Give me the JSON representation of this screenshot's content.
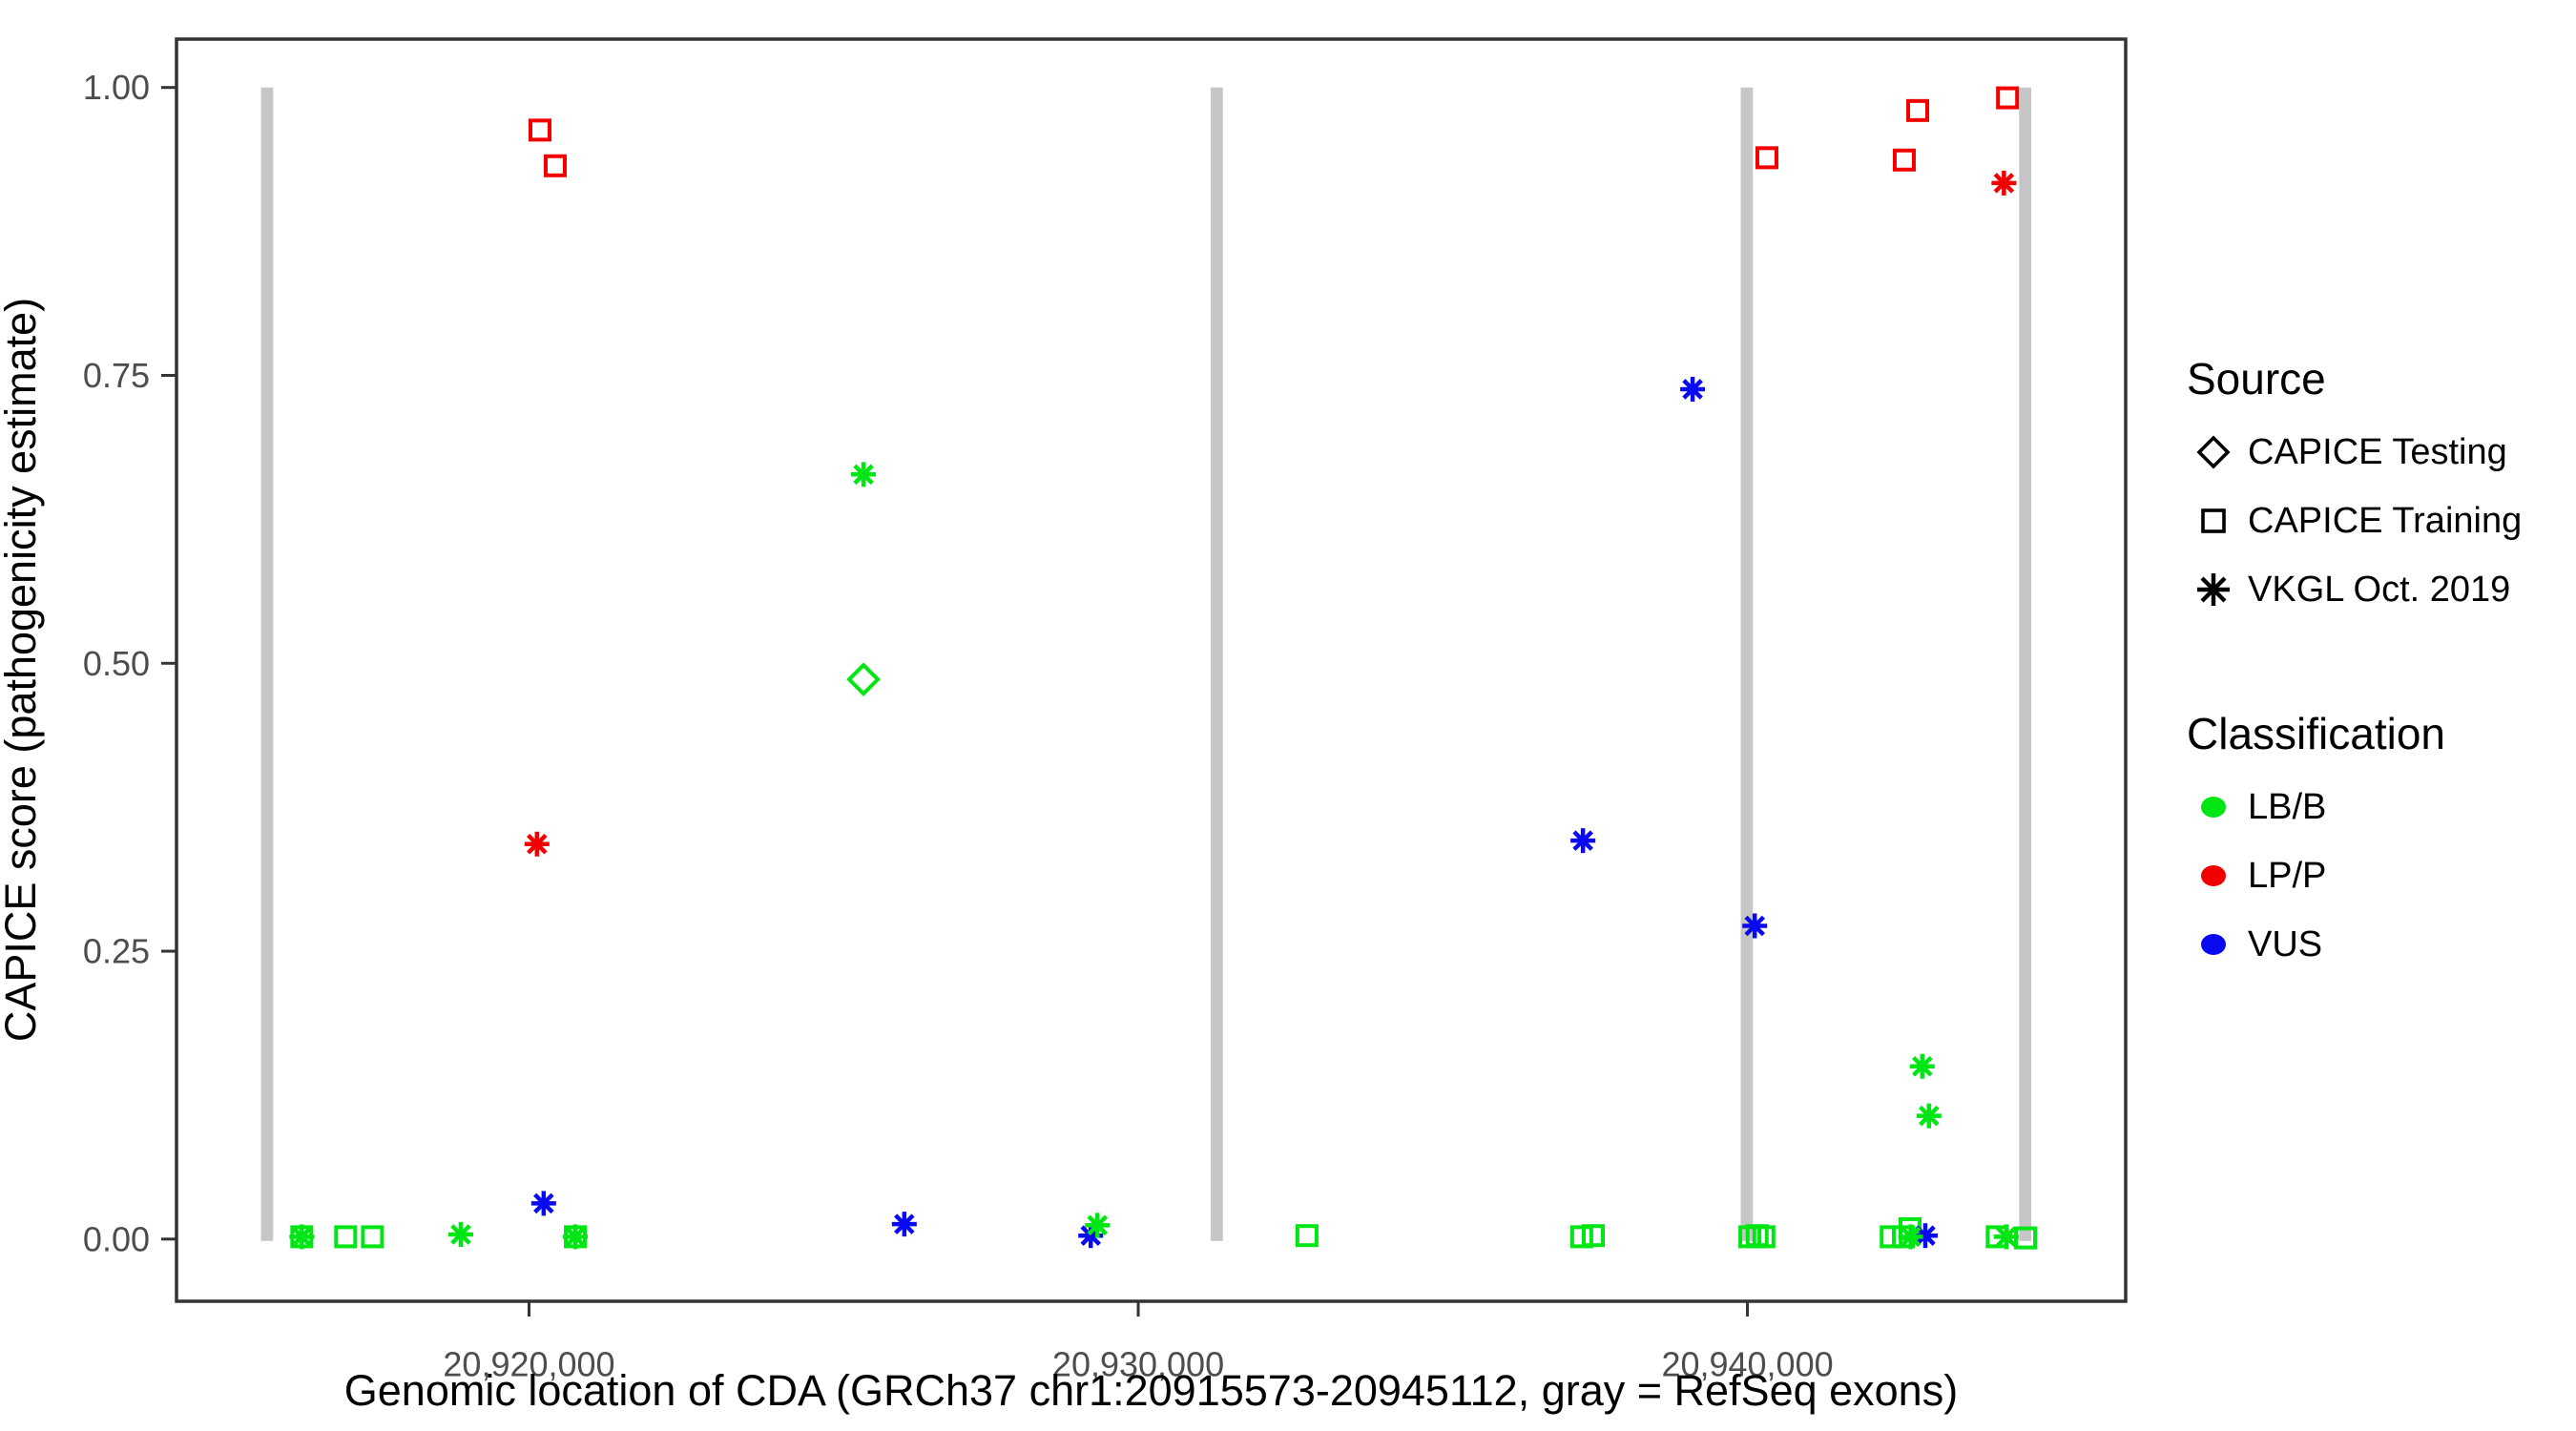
{
  "chart_data": {
    "type": "scatter",
    "title": "",
    "xlabel": "Genomic location of CDA (GRCh37 chr1:20915573-20945112, gray = RefSeq exons)",
    "ylabel": "CAPICE score (pathogenicity estimate)",
    "xlim": [
      20914213,
      20946209
    ],
    "ylim": [
      -0.054,
      1.042
    ],
    "grid": false,
    "x_ticks": [
      {
        "value": 20920000,
        "label": "20,920,000"
      },
      {
        "value": 20930000,
        "label": "20,930,000"
      },
      {
        "value": 20940000,
        "label": "20,940,000"
      }
    ],
    "y_ticks": [
      {
        "value": 1.0,
        "label": "1.00"
      },
      {
        "value": 0.75,
        "label": "0.75"
      },
      {
        "value": 0.5,
        "label": "0.50"
      },
      {
        "value": 0.25,
        "label": "0.25"
      },
      {
        "value": 0.0,
        "label": "0.00"
      }
    ],
    "colors": {
      "LB/B": "#00e614",
      "LP/P": "#f20000",
      "VUS": "#0a0af0",
      "exon": "#c6c6c6",
      "border": "#333333",
      "tick_text": "#4d4d4d"
    },
    "exons_note": "gray = RefSeq exons",
    "exons": [
      {
        "center": 20915700,
        "width_bp": 200
      },
      {
        "center": 20931290,
        "width_bp": 200
      },
      {
        "center": 20939990,
        "width_bp": 200
      },
      {
        "center": 20944560,
        "width_bp": 200
      }
    ],
    "points": [
      {
        "x": 20920180,
        "y": 0.963,
        "source": "training",
        "class": "LP/P"
      },
      {
        "x": 20920430,
        "y": 0.932,
        "source": "training",
        "class": "LP/P"
      },
      {
        "x": 20940320,
        "y": 0.939,
        "source": "training",
        "class": "LP/P"
      },
      {
        "x": 20942575,
        "y": 0.937,
        "source": "training",
        "class": "LP/P"
      },
      {
        "x": 20942795,
        "y": 0.98,
        "source": "training",
        "class": "LP/P"
      },
      {
        "x": 20944270,
        "y": 0.991,
        "source": "training",
        "class": "LP/P"
      },
      {
        "x": 20920130,
        "y": 0.343,
        "source": "vkgl",
        "class": "LP/P"
      },
      {
        "x": 20944210,
        "y": 0.917,
        "source": "vkgl",
        "class": "LP/P"
      },
      {
        "x": 20920240,
        "y": 0.031,
        "source": "vkgl",
        "class": "VUS"
      },
      {
        "x": 20926160,
        "y": 0.013,
        "source": "vkgl",
        "class": "VUS"
      },
      {
        "x": 20929220,
        "y": 0.003,
        "source": "vkgl",
        "class": "VUS"
      },
      {
        "x": 20937300,
        "y": 0.346,
        "source": "vkgl",
        "class": "VUS"
      },
      {
        "x": 20939100,
        "y": 0.738,
        "source": "vkgl",
        "class": "VUS"
      },
      {
        "x": 20940120,
        "y": 0.272,
        "source": "vkgl",
        "class": "VUS"
      },
      {
        "x": 20942920,
        "y": 0.003,
        "source": "vkgl",
        "class": "VUS"
      },
      {
        "x": 20925490,
        "y": 0.664,
        "source": "vkgl",
        "class": "LB/B"
      },
      {
        "x": 20925490,
        "y": 0.486,
        "source": "testing",
        "class": "LB/B"
      },
      {
        "x": 20929330,
        "y": 0.012,
        "source": "vkgl",
        "class": "LB/B"
      },
      {
        "x": 20942870,
        "y": 0.15,
        "source": "vkgl",
        "class": "LB/B"
      },
      {
        "x": 20942980,
        "y": 0.107,
        "source": "vkgl",
        "class": "LB/B"
      },
      {
        "x": 20916270,
        "y": 0.002,
        "source": "vkgl",
        "class": "LB/B"
      },
      {
        "x": 20918880,
        "y": 0.004,
        "source": "vkgl",
        "class": "LB/B"
      },
      {
        "x": 20920760,
        "y": 0.002,
        "source": "vkgl",
        "class": "LB/B"
      },
      {
        "x": 20942680,
        "y": 0.002,
        "source": "vkgl",
        "class": "LB/B"
      },
      {
        "x": 20944250,
        "y": 0.002,
        "source": "vkgl",
        "class": "LB/B"
      },
      {
        "x": 20916270,
        "y": 0.002,
        "source": "training",
        "class": "LB/B"
      },
      {
        "x": 20916990,
        "y": 0.002,
        "source": "training",
        "class": "LB/B"
      },
      {
        "x": 20917430,
        "y": 0.002,
        "source": "training",
        "class": "LB/B"
      },
      {
        "x": 20920760,
        "y": 0.002,
        "source": "training",
        "class": "LB/B"
      },
      {
        "x": 20932770,
        "y": 0.003,
        "source": "training",
        "class": "LB/B"
      },
      {
        "x": 20937280,
        "y": 0.002,
        "source": "training",
        "class": "LB/B"
      },
      {
        "x": 20937470,
        "y": 0.003,
        "source": "training",
        "class": "LB/B"
      },
      {
        "x": 20940040,
        "y": 0.002,
        "source": "training",
        "class": "LB/B"
      },
      {
        "x": 20940160,
        "y": 0.003,
        "source": "training",
        "class": "LB/B"
      },
      {
        "x": 20940270,
        "y": 0.002,
        "source": "training",
        "class": "LB/B"
      },
      {
        "x": 20942360,
        "y": 0.002,
        "source": "training",
        "class": "LB/B"
      },
      {
        "x": 20942560,
        "y": 0.002,
        "source": "training",
        "class": "LB/B"
      },
      {
        "x": 20942670,
        "y": 0.009,
        "source": "training",
        "class": "LB/B"
      },
      {
        "x": 20944100,
        "y": 0.002,
        "source": "training",
        "class": "LB/B"
      },
      {
        "x": 20944565,
        "y": 0.001,
        "source": "training",
        "class": "LB/B"
      }
    ],
    "legend_position": "right"
  },
  "legend": {
    "source": {
      "title": "Source",
      "items": [
        {
          "label": "CAPICE Testing",
          "shape": "diamond"
        },
        {
          "label": "CAPICE Training",
          "shape": "square"
        },
        {
          "label": "VKGL Oct. 2019",
          "shape": "asterisk"
        }
      ]
    },
    "classification": {
      "title": "Classification",
      "items": [
        {
          "label": "LB/B",
          "color_key": "LB/B"
        },
        {
          "label": "LP/P",
          "color_key": "LP/P"
        },
        {
          "label": "VUS",
          "color_key": "VUS"
        }
      ]
    }
  }
}
